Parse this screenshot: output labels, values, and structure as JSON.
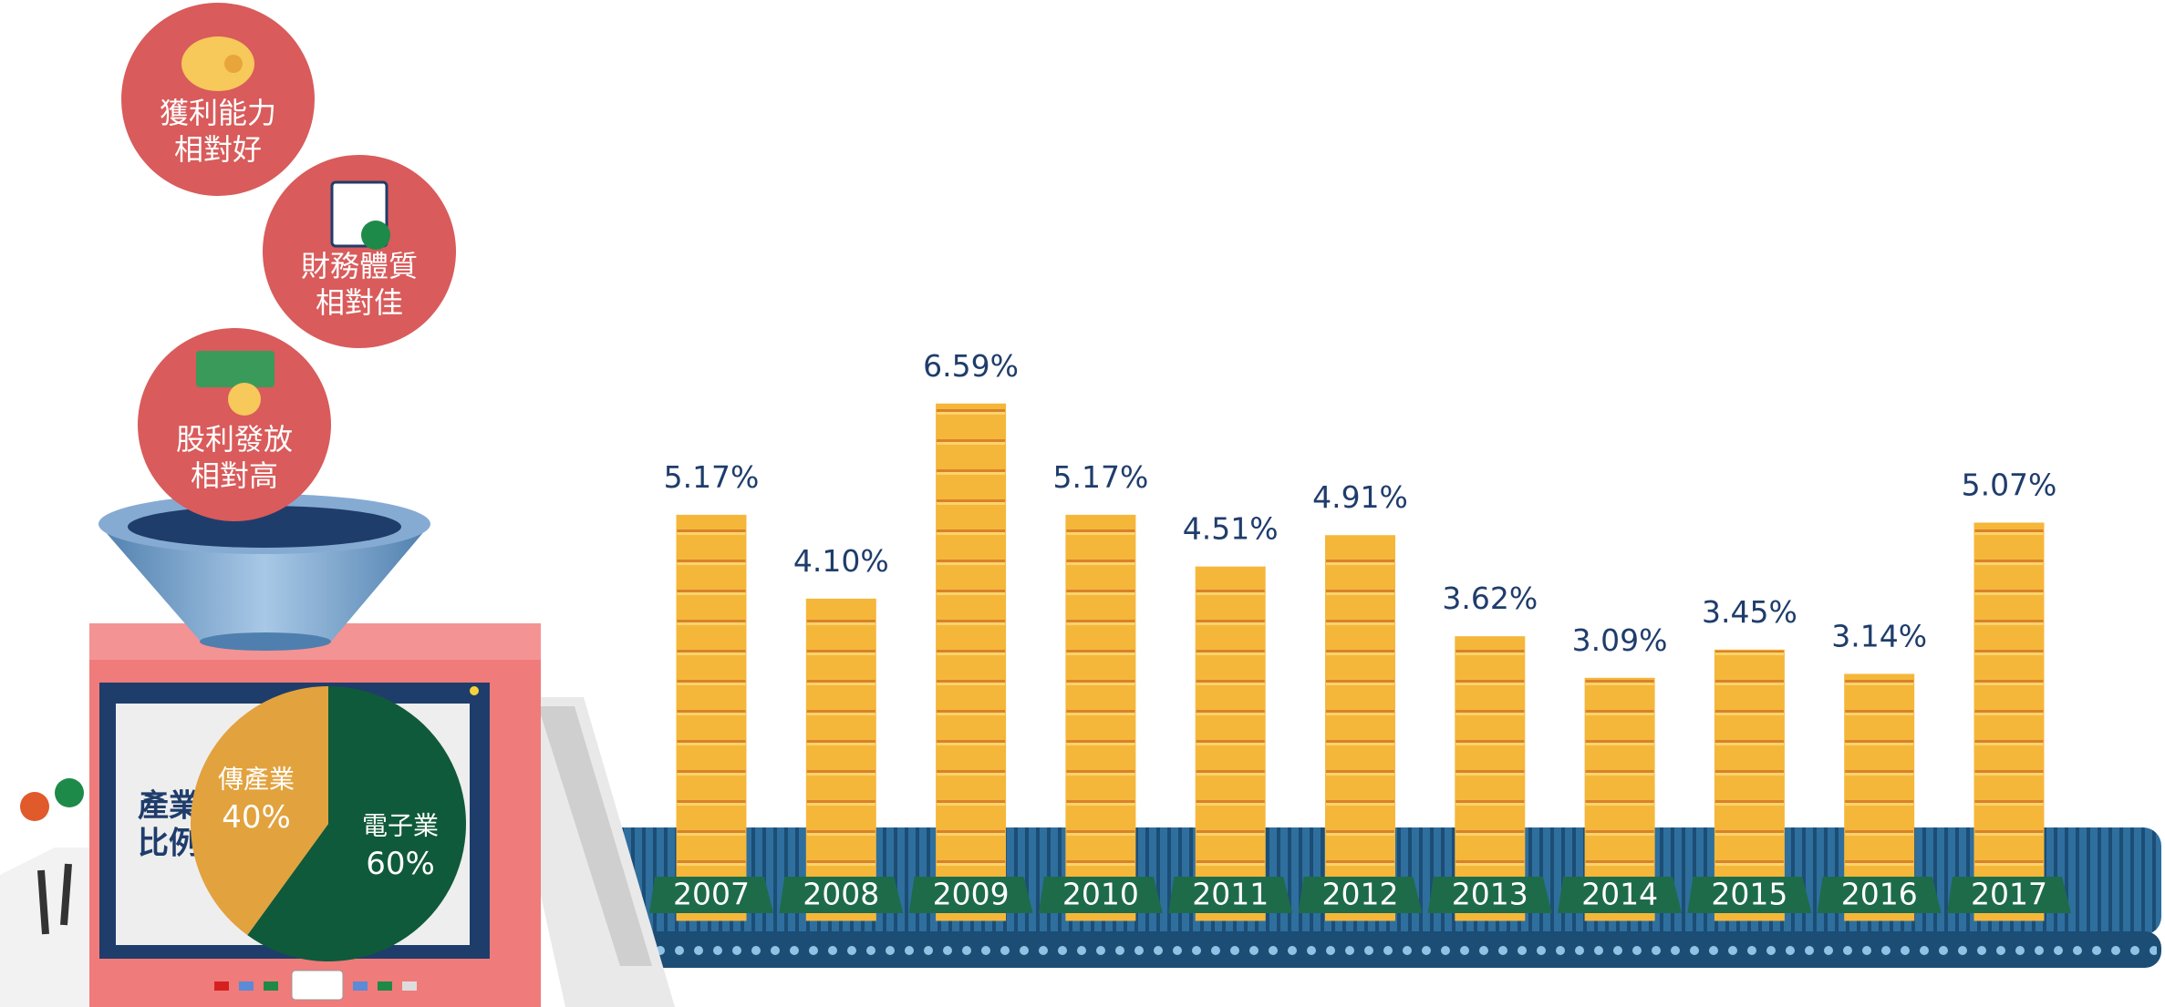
{
  "chart_data": [
    {
      "type": "bar",
      "categories": [
        "2007",
        "2008",
        "2009",
        "2010",
        "2011",
        "2012",
        "2013",
        "2014",
        "2015",
        "2016",
        "2017"
      ],
      "values": [
        5.17,
        4.1,
        6.59,
        5.17,
        4.51,
        4.91,
        3.62,
        3.09,
        3.45,
        3.14,
        5.07
      ],
      "value_labels": [
        "5.17%",
        "4.10%",
        "6.59%",
        "5.17%",
        "4.51%",
        "4.91%",
        "3.62%",
        "3.09%",
        "3.45%",
        "3.14%",
        "5.07%"
      ],
      "color": "#f5b73a"
    },
    {
      "type": "pie",
      "title": [
        "產業",
        "比例"
      ],
      "categories": [
        "傳產業",
        "電子業"
      ],
      "values": [
        40,
        60
      ],
      "value_labels": [
        "40%",
        "60%"
      ],
      "colors": [
        "#e2a23e",
        "#0f5a3a"
      ]
    }
  ],
  "badges": [
    {
      "title": "獲利能力",
      "subtitle": "相對好"
    },
    {
      "title": "財務體質",
      "subtitle": "相對佳"
    },
    {
      "title": "股利發放",
      "subtitle": "相對高"
    }
  ]
}
